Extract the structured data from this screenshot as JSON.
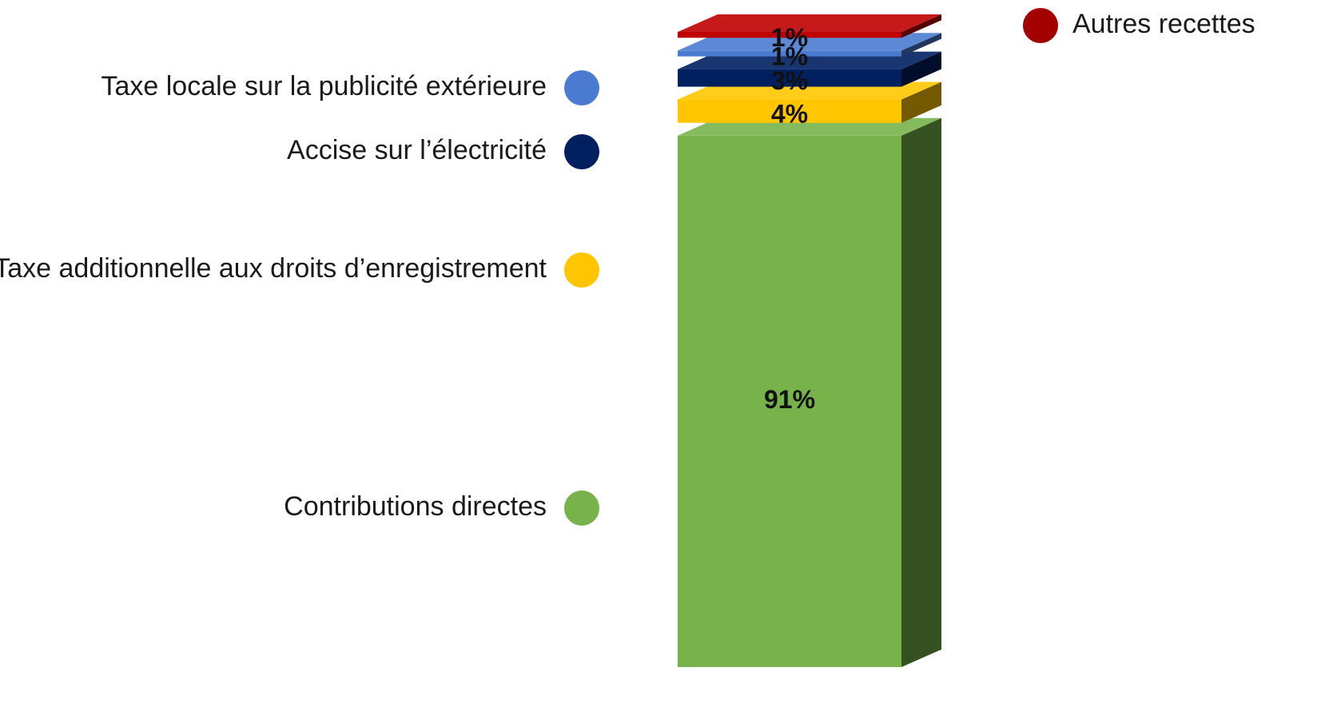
{
  "chart_data": {
    "type": "bar",
    "stacked": true,
    "series": [
      {
        "name": "Contributions directes",
        "color": "#77b34a",
        "values": [
          91
        ],
        "value_labels": [
          "91%"
        ]
      },
      {
        "name": "Taxe additionnelle aux droits d’enregistrement",
        "color": "#ffc600",
        "values": [
          4
        ],
        "value_labels": [
          "4%"
        ]
      },
      {
        "name": "Accise sur l’électricité",
        "color": "#002060",
        "values": [
          3
        ],
        "value_labels": [
          "3%"
        ]
      },
      {
        "name": "Taxe locale sur la publicité extérieure",
        "color": "#4a7bd0",
        "values": [
          1
        ],
        "value_labels": [
          "1%"
        ]
      },
      {
        "name": "Autres recettes",
        "color": "#c00000",
        "values": [
          1
        ],
        "value_labels": [
          "1%"
        ]
      }
    ]
  }
}
